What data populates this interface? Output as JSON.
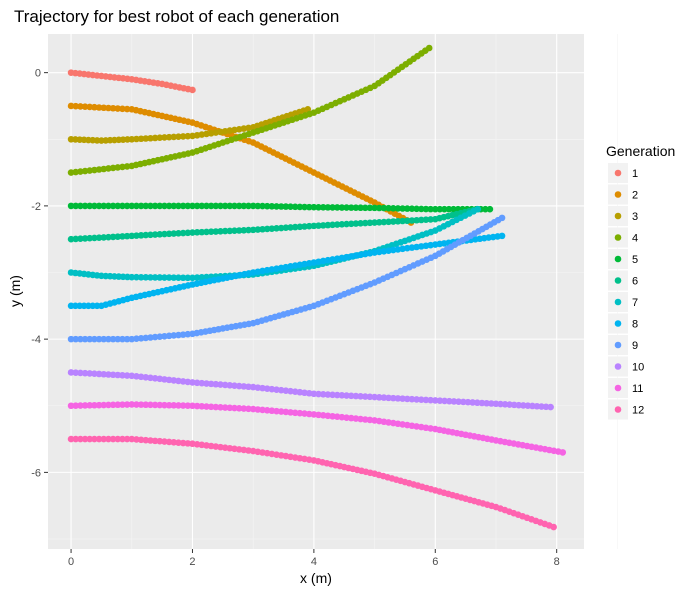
{
  "chart_data": {
    "type": "scatter",
    "title": "Trajectory for best robot of each generation",
    "xlabel": "x (m)",
    "ylabel": "y (m)",
    "xlim": [
      -0.38,
      8.45
    ],
    "ylim": [
      -7.15,
      0.58
    ],
    "xticks": [
      0,
      2,
      4,
      6,
      8
    ],
    "yticks": [
      0,
      -2,
      -4,
      -6
    ],
    "xtick_labels": [
      "0",
      "2",
      "4",
      "6",
      "8"
    ],
    "ytick_labels": [
      "0",
      "-2",
      "-4",
      "-6"
    ],
    "grid": true,
    "background": "#EBEBEB",
    "legend": {
      "title": "Generation",
      "position": "right"
    },
    "series": [
      {
        "name": "1",
        "color": "#F8766D",
        "points": [
          [
            0,
            0
          ],
          [
            0.5,
            -0.05
          ],
          [
            1.0,
            -0.1
          ],
          [
            1.5,
            -0.17
          ],
          [
            2.0,
            -0.26
          ]
        ]
      },
      {
        "name": "2",
        "color": "#DE8C00",
        "points": [
          [
            0,
            -0.5
          ],
          [
            1,
            -0.55
          ],
          [
            2,
            -0.75
          ],
          [
            3,
            -1.05
          ],
          [
            4,
            -1.5
          ],
          [
            5,
            -1.95
          ],
          [
            5.6,
            -2.25
          ]
        ]
      },
      {
        "name": "3",
        "color": "#B79F00",
        "points": [
          [
            0,
            -1.0
          ],
          [
            0.5,
            -1.02
          ],
          [
            1.0,
            -1.0
          ],
          [
            2.0,
            -0.95
          ],
          [
            3.0,
            -0.82
          ],
          [
            3.9,
            -0.55
          ]
        ]
      },
      {
        "name": "4",
        "color": "#7CAE00",
        "points": [
          [
            0,
            -1.5
          ],
          [
            1,
            -1.4
          ],
          [
            2,
            -1.2
          ],
          [
            3,
            -0.9
          ],
          [
            4,
            -0.6
          ],
          [
            5,
            -0.2
          ],
          [
            5.9,
            0.37
          ]
        ]
      },
      {
        "name": "5",
        "color": "#00BA38",
        "points": [
          [
            0,
            -2.0
          ],
          [
            1,
            -2.0
          ],
          [
            2,
            -2.0
          ],
          [
            3,
            -2.0
          ],
          [
            4,
            -2.02
          ],
          [
            5,
            -2.03
          ],
          [
            6,
            -2.05
          ],
          [
            6.9,
            -2.05
          ]
        ]
      },
      {
        "name": "6",
        "color": "#00C08B",
        "points": [
          [
            0,
            -2.5
          ],
          [
            1,
            -2.45
          ],
          [
            2,
            -2.4
          ],
          [
            3,
            -2.36
          ],
          [
            4,
            -2.3
          ],
          [
            5,
            -2.25
          ],
          [
            6,
            -2.2
          ],
          [
            6.7,
            -2.05
          ]
        ]
      },
      {
        "name": "7",
        "color": "#00BFC4",
        "points": [
          [
            0,
            -3.0
          ],
          [
            0.5,
            -3.05
          ],
          [
            1,
            -3.07
          ],
          [
            2,
            -3.08
          ],
          [
            3,
            -3.03
          ],
          [
            4,
            -2.9
          ],
          [
            5,
            -2.68
          ],
          [
            6,
            -2.37
          ],
          [
            6.7,
            -2.05
          ]
        ]
      },
      {
        "name": "8",
        "color": "#00B4F0",
        "points": [
          [
            0,
            -3.5
          ],
          [
            0.5,
            -3.5
          ],
          [
            1,
            -3.38
          ],
          [
            2,
            -3.18
          ],
          [
            3,
            -3.0
          ],
          [
            4,
            -2.85
          ],
          [
            5,
            -2.7
          ],
          [
            6,
            -2.58
          ],
          [
            7.1,
            -2.45
          ]
        ]
      },
      {
        "name": "9",
        "color": "#619CFF",
        "points": [
          [
            0,
            -4.0
          ],
          [
            1,
            -4.0
          ],
          [
            2,
            -3.92
          ],
          [
            3,
            -3.76
          ],
          [
            4,
            -3.5
          ],
          [
            5,
            -3.15
          ],
          [
            6,
            -2.75
          ],
          [
            7.1,
            -2.18
          ]
        ]
      },
      {
        "name": "10",
        "color": "#B983FF",
        "points": [
          [
            0,
            -4.5
          ],
          [
            1,
            -4.55
          ],
          [
            2,
            -4.65
          ],
          [
            3,
            -4.72
          ],
          [
            4,
            -4.82
          ],
          [
            5,
            -4.87
          ],
          [
            6,
            -4.92
          ],
          [
            7,
            -4.97
          ],
          [
            7.9,
            -5.02
          ]
        ]
      },
      {
        "name": "11",
        "color": "#F564E3",
        "points": [
          [
            0,
            -5.0
          ],
          [
            1,
            -4.98
          ],
          [
            2,
            -5.0
          ],
          [
            3,
            -5.05
          ],
          [
            4,
            -5.13
          ],
          [
            5,
            -5.22
          ],
          [
            6,
            -5.35
          ],
          [
            7,
            -5.52
          ],
          [
            8.1,
            -5.7
          ]
        ]
      },
      {
        "name": "12",
        "color": "#FF64B0",
        "points": [
          [
            0,
            -5.5
          ],
          [
            1,
            -5.5
          ],
          [
            2,
            -5.57
          ],
          [
            3,
            -5.68
          ],
          [
            4,
            -5.82
          ],
          [
            5,
            -6.02
          ],
          [
            6,
            -6.27
          ],
          [
            7,
            -6.52
          ],
          [
            7.95,
            -6.82
          ]
        ]
      }
    ]
  }
}
